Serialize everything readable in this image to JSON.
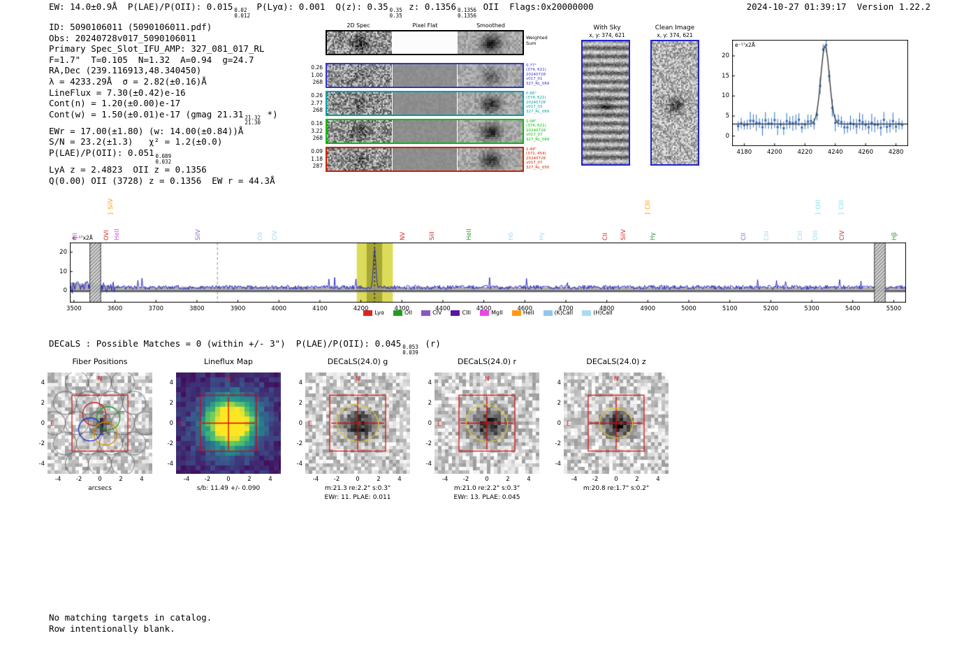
{
  "header": {
    "part1": "EW: 14.0±0.9Å  P(LAE)/P(OII): 0.015",
    "s1_sup": "0.02",
    "s1_sub": "0.012",
    "part2": " P(Lyα): 0.001  Q(z): 0.35",
    "s2_sup": "0.35",
    "s2_sub": "0.35",
    "part3": " z: 0.1356",
    "s3_sup": "0.1356",
    "s3_sub": "0.1356",
    "part4": " OII  Flags:0x20000000",
    "datetime": "2024-10-27 01:39:17  Version 1.22.2"
  },
  "info": {
    "lines": [
      {
        "text": "ID: 5090106011 (5090106011.pdf)"
      },
      {
        "text": "Obs: 20240728v017_5090106011"
      },
      {
        "text": "Primary Spec_Slot_IFU_AMP: 327_081_017_RL"
      },
      {
        "text": "F=1.7\"  T=0.105  N=1.32  A=0.94  g=24.7"
      },
      {
        "text": "RA,Dec (239.116913,48.340450)"
      },
      {
        "text": "λ = 4233.29Å  σ = 2.82(±0.16)Å"
      },
      {
        "text": "LineFlux = 7.30(±0.42)e-16"
      },
      {
        "text": "Cont(n) = 1.20(±0.00)e-17"
      },
      {
        "text": "Cont(w) = 1.50(±0.01)e-17 (gmag 21.31",
        "sup": "21.32",
        "sub": "21.30",
        "tail": " *)"
      },
      {
        "text": "EWr = 17.00(±1.80) (w: 14.00(±0.84))Å"
      },
      {
        "text": "S/N = 23.2(±1.3)   χ² = 1.2(±0.0)"
      },
      {
        "text": "P(LAE)/P(OII): 0.051",
        "sup": "0.089",
        "sub": "0.032",
        "tail": ""
      },
      {
        "text": "LyA z = 2.4823  OII z = 0.1356"
      },
      {
        "text": "Q(0.00) OII (3728) z = 0.1356  EW r = 44.3Å"
      }
    ]
  },
  "spec2d": {
    "col_headers": [
      "2D Spec",
      "Pixel Flat",
      "Smoothed"
    ],
    "weighted_label": [
      "Weighted",
      "Sum"
    ],
    "rows": [
      {
        "border": "#000000",
        "color": "#000000",
        "left": [],
        "ann": []
      },
      {
        "border": "#3333cc",
        "color": "#3333cc",
        "left": [
          "0.26",
          "1.00",
          "268"
        ],
        "ann": [
          "0.77\"",
          "(374, 621)",
          "20240728",
          "v017_01",
          "327_RL_069"
        ]
      },
      {
        "border": "#00a0a0",
        "color": "#00a0a0",
        "left": [
          "0.26",
          "2.77",
          "268"
        ],
        "ann": [
          "0.66\"",
          "(374, 621)",
          "20240728",
          "v017_03",
          "327_RL_069"
        ]
      },
      {
        "border": "#00c000",
        "color": "#00c000",
        "left": [
          "0.16",
          "3.22",
          "268"
        ],
        "ann": [
          "1.08\"",
          "(374, 621)",
          "20240728",
          "v017_07",
          "327_RL_069"
        ]
      },
      {
        "border": "#cc2200",
        "color": "#cc2200",
        "left": [
          "0.09",
          "1.18",
          "287"
        ],
        "ann": [
          "1.49\"",
          "(372, 454)",
          "20240728",
          "v017_07",
          "327_RL_050"
        ]
      }
    ]
  },
  "sky_panels": {
    "border_color": "#2222cc",
    "with_sky": {
      "title": "With Sky",
      "coords": "x, y: 374, 621"
    },
    "clean": {
      "title": "Clean Image",
      "coords": "x, y: 374, 621"
    }
  },
  "chart_data": [
    {
      "id": "line_fit_zoom",
      "type": "line",
      "ylabel": "e⁻¹⁷x2Å",
      "x_range": [
        4172,
        4288
      ],
      "y_range": [
        -2.5,
        24
      ],
      "x_ticks": [
        4180,
        4200,
        4220,
        4240,
        4260,
        4280
      ],
      "y_ticks": [
        0,
        5,
        10,
        15,
        20
      ],
      "gaussian": {
        "center": 4233.29,
        "sigma": 2.82,
        "amplitude": 19.5,
        "baseline": 3.0
      },
      "peak_value": 22.5,
      "point_color": "#2d6cc0",
      "fit_color": "#3a3a3a"
    },
    {
      "id": "full_spectrum",
      "type": "line",
      "ylabel": "e⁻¹⁷x2Å",
      "x_range": [
        3490,
        5530
      ],
      "y_range": [
        -6,
        25
      ],
      "x_ticks": [
        3500,
        3600,
        3700,
        3800,
        3900,
        4000,
        4100,
        4200,
        4300,
        4400,
        4500,
        4600,
        4700,
        4800,
        4900,
        5000,
        5100,
        5200,
        5300,
        5400,
        5500
      ],
      "y_ticks": [
        0,
        10,
        20
      ],
      "continuum": 1.9,
      "noise_amp": 1.1,
      "gaussian": {
        "center": 4233.29,
        "sigma": 2.82,
        "amplitude": 20.5
      },
      "line_color": "#1414c8",
      "highlight": {
        "x0": 4190,
        "x1": 4278,
        "color": "#d8d848",
        "inner_x0": 4214,
        "inner_x1": 4252,
        "inner_color": "#a2a232"
      },
      "dashed_marker": 4233.3,
      "gray_dashed": 3850,
      "hatch_regions": [
        [
          3538,
          3566
        ],
        [
          5452,
          5480
        ]
      ],
      "emission_lines": [
        {
          "label": "CII",
          "wl": 3519,
          "color": "#e649e6",
          "tier": 0
        },
        {
          "label": "} SiIV",
          "wl": 3606,
          "color": "#ff9912",
          "tier": 1
        },
        {
          "label": "OVI",
          "wl": 3596,
          "color": "#d62728",
          "tier": 0
        },
        {
          "label": "HeII",
          "wl": 3621,
          "color": "#e649e6",
          "tier": 0
        },
        {
          "label": "SiIV",
          "wl": 3819,
          "color": "#9467bd",
          "tier": 0
        },
        {
          "label": "OII",
          "wl": 3970,
          "color": "#9adcee",
          "tier": 0
        },
        {
          "label": "CIV",
          "wl": 4007,
          "color": "#9adcee",
          "tier": 0
        },
        {
          "label": "NV",
          "wl": 4318,
          "color": "#d62728",
          "tier": 0
        },
        {
          "label": "SiII",
          "wl": 4390,
          "color": "#d62728",
          "tier": 0
        },
        {
          "label": "HeII",
          "wl": 4480,
          "color": "#2ca02c",
          "tier": 0
        },
        {
          "label": "Hδ",
          "wl": 4582,
          "color": "#9adcee",
          "tier": 0
        },
        {
          "label": "Hγ",
          "wl": 4658,
          "color": "#9adcee",
          "tier": 0
        },
        {
          "label": "CII",
          "wl": 4812,
          "color": "#d62728",
          "tier": 0
        },
        {
          "label": "SiIV",
          "wl": 4856,
          "color": "#d62728",
          "tier": 0
        },
        {
          "label": "} CIII",
          "wl": 4916,
          "color": "#ff9912",
          "tier": 1
        },
        {
          "label": "Hγ",
          "wl": 4929,
          "color": "#2ca02c",
          "tier": 0
        },
        {
          "label": "CII",
          "wl": 5150,
          "color": "#9467bd",
          "tier": 0
        },
        {
          "label": "CIII",
          "wl": 5206,
          "color": "#9adcee",
          "tier": 0
        },
        {
          "label": "CIII",
          "wl": 5288,
          "color": "#9adcee",
          "tier": 0
        },
        {
          "label": "OIII",
          "wl": 5325,
          "color": "#9adcee",
          "tier": 0
        },
        {
          "label": "} OIII",
          "wl": 5332,
          "color": "#7fe3ee",
          "tier": 1
        },
        {
          "label": "CIV",
          "wl": 5390,
          "color": "#d62728",
          "tier": 0
        },
        {
          "label": "} CIII",
          "wl": 5388,
          "color": "#7fe3ee",
          "tier": 1
        },
        {
          "label": "Hβ",
          "wl": 5518,
          "color": "#2ca02c",
          "tier": 0
        }
      ],
      "legend": [
        {
          "label": "Lyα",
          "color": "#dd2222"
        },
        {
          "label": "OII",
          "color": "#1f9e1f"
        },
        {
          "label": "CIV",
          "color": "#8857c8"
        },
        {
          "label": "CIII",
          "color": "#5a14a8"
        },
        {
          "label": "MgII",
          "color": "#ee44ee"
        },
        {
          "label": "HeII",
          "color": "#ff9912"
        },
        {
          "label": "(K)CaII",
          "color": "#8fc8ea"
        },
        {
          "label": "(H)CaII",
          "color": "#a8dcf0"
        }
      ]
    }
  ],
  "decals_line": {
    "part1": "DECaLS : Possible Matches = 0 (within +/- 3\")  P(LAE)/P(OII): 0.045",
    "sup": "0.053",
    "sub": "0.039",
    "tail": " (r)"
  },
  "cutouts": {
    "y_ticks": [
      "4",
      "2",
      "0",
      "-2",
      "-4"
    ],
    "x_ticks": [
      "-4",
      "-2",
      "0",
      "2",
      "4"
    ],
    "compass": {
      "n": "N",
      "e": "E"
    },
    "panels": [
      {
        "title": "Fiber Positions",
        "xlabel": "arcsecs",
        "caption1": "",
        "caption2": ""
      },
      {
        "title": "Lineflux Map",
        "xlabel": "",
        "caption1": "s/b: 11.49 +/- 0.090",
        "caption2": ""
      },
      {
        "title": "DECaLS(24.0) g",
        "xlabel": "",
        "caption1": "m:21.3 re:2.2\" s:0.3\"",
        "caption2": "EWr: 11. PLAE: 0.011"
      },
      {
        "title": "DECaLS(24.0) r",
        "xlabel": "",
        "caption1": "m:21.0 re:2.2\" s:0.3\"",
        "caption2": "EWr: 13. PLAE: 0.045"
      },
      {
        "title": "DECaLS(24.0) z",
        "xlabel": "",
        "caption1": "m:20.8 re:1.7\" s:0.2\"",
        "caption2": ""
      }
    ]
  },
  "footer": {
    "lines": [
      "No matching targets in catalog.",
      "Row intentionally blank."
    ]
  }
}
